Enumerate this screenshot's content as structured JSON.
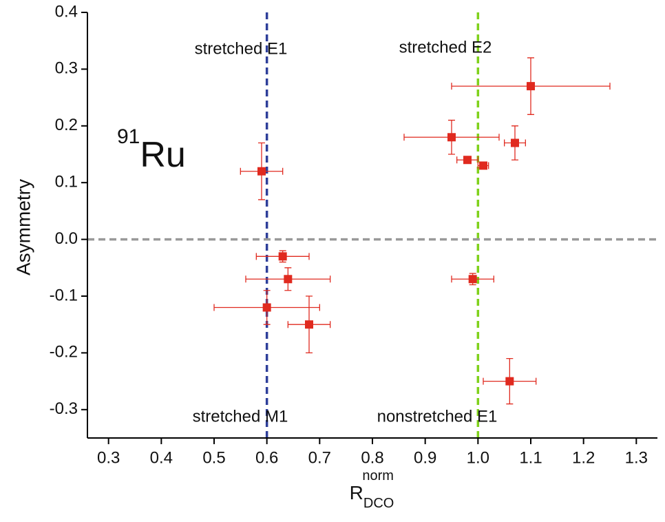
{
  "chart_data": {
    "type": "scatter",
    "x_label": {
      "base": "R",
      "sub": "DCO",
      "sup": "norm"
    },
    "y_label": "Asymmetry",
    "nucleus": {
      "mass": "91",
      "element": "Ru"
    },
    "annotations": [
      "stretched E1",
      "stretched E2",
      "stretched M1",
      "nonstretched E1"
    ],
    "xlim": [
      0.26,
      1.34
    ],
    "ylim": [
      -0.35,
      0.4
    ],
    "xticks": [
      0.3,
      0.4,
      0.5,
      0.6,
      0.7,
      0.8,
      0.9,
      {
        "value": 1,
        "label": "1.0"
      },
      1.1,
      1.2,
      1.3
    ],
    "yticks": [
      0.4,
      0.3,
      0.2,
      0.1,
      {
        "value": 0,
        "label": "0.0"
      },
      -0.1,
      -0.2,
      -0.3
    ],
    "reference_lines": [
      {
        "axis": "x",
        "value": 0.6,
        "color": "#2e3f9a"
      },
      {
        "axis": "x",
        "value": 1.0,
        "color": "#7fd11b"
      },
      {
        "axis": "y",
        "value": 0,
        "color": "#999999"
      }
    ],
    "series": [
      {
        "color": "#e02a1f",
        "x": [
          0.59,
          0.63,
          0.64,
          0.6,
          0.68,
          1.1,
          0.95,
          0.98,
          1.01,
          1.07,
          0.99,
          1.06
        ],
        "values": [
          0.12,
          -0.03,
          -0.07,
          -0.12,
          -0.15,
          0.27,
          0.18,
          0.14,
          0.13,
          0.17,
          -0.07,
          -0.25
        ],
        "xerr": [
          0.04,
          0.05,
          0.08,
          0.1,
          0.04,
          0.15,
          0.09,
          0.02,
          0.01,
          0.02,
          0.04,
          0.05
        ],
        "yerr": [
          0.05,
          0.01,
          0.02,
          0.03,
          0.05,
          0.05,
          0.03,
          0.005,
          0.005,
          0.03,
          0.01,
          0.04
        ]
      }
    ]
  }
}
